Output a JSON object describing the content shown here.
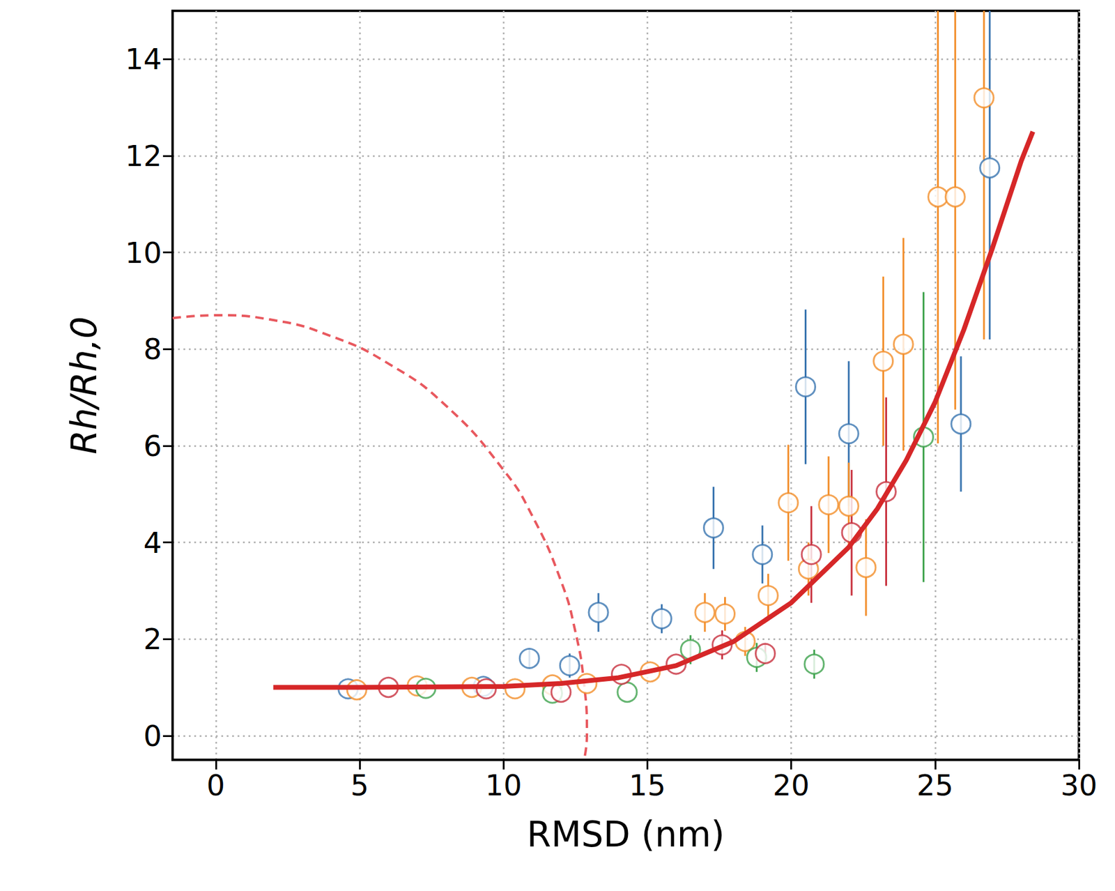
{
  "chart_data": {
    "type": "scatter",
    "xlabel": "RMSD (nm)",
    "ylabel": "Rh/Rh,0",
    "xlim": [
      -1.5,
      30
    ],
    "ylim": [
      -0.5,
      15
    ],
    "xticks": [
      0,
      5,
      10,
      15,
      20,
      25,
      30
    ],
    "yticks": [
      0,
      2,
      4,
      6,
      8,
      10,
      12,
      14
    ],
    "grid": true,
    "series": [
      {
        "color": "#3a75b0",
        "marker": "circle",
        "x": [
          4.6,
          9.3,
          10.9,
          12.3,
          13.3,
          15.5,
          17.3,
          19.0,
          20.5,
          22.0,
          25.9,
          26.9
        ],
        "values": [
          0.97,
          1.02,
          1.6,
          1.45,
          2.55,
          2.42,
          4.3,
          3.75,
          7.22,
          6.25,
          6.45,
          11.75
        ],
        "errors": [
          0,
          0,
          0.2,
          0.25,
          0.4,
          0.3,
          0.85,
          0.6,
          1.6,
          1.5,
          1.4,
          3.55
        ]
      },
      {
        "color": "#f28e2b",
        "marker": "circle",
        "x": [
          4.9,
          7.0,
          8.9,
          10.4,
          11.7,
          12.9,
          15.1,
          17.0,
          17.7,
          18.4,
          19.2,
          19.9,
          20.6,
          21.3,
          22.0,
          22.6,
          23.2,
          23.9,
          25.1,
          25.7,
          26.7
        ],
        "values": [
          0.95,
          1.03,
          1.0,
          0.97,
          1.05,
          1.08,
          1.32,
          2.55,
          2.52,
          1.95,
          2.9,
          4.82,
          3.45,
          4.78,
          4.75,
          3.48,
          7.75,
          8.1,
          11.15,
          11.15,
          13.2
        ],
        "errors": [
          0,
          0,
          0,
          0,
          0,
          0,
          0,
          0.4,
          0.35,
          0.3,
          0.45,
          1.2,
          0.55,
          1.0,
          0.9,
          1.0,
          1.75,
          2.2,
          5.1,
          4.4,
          5.0
        ]
      },
      {
        "color": "#3fa34d",
        "marker": "circle",
        "x": [
          7.3,
          11.7,
          14.3,
          16.5,
          18.8,
          20.8,
          24.6
        ],
        "values": [
          0.98,
          0.88,
          0.9,
          1.78,
          1.62,
          1.48,
          6.18
        ],
        "errors": [
          0,
          0,
          0,
          0.3,
          0.3,
          0.3,
          3.0
        ]
      },
      {
        "color": "#c8313e",
        "marker": "circle",
        "x": [
          6.0,
          9.4,
          12.0,
          14.1,
          16.0,
          17.6,
          19.1,
          20.7,
          22.1,
          23.3
        ],
        "values": [
          1.0,
          0.97,
          0.9,
          1.27,
          1.48,
          1.88,
          1.7,
          3.75,
          4.2,
          5.05
        ],
        "errors": [
          0,
          0,
          0,
          0,
          0,
          0.3,
          0.2,
          1.0,
          1.3,
          1.95
        ]
      },
      {
        "type": "line",
        "color": "#d62728",
        "line_style": "solid",
        "x": [
          2,
          5,
          10,
          12,
          14,
          16,
          18,
          20,
          22,
          23,
          24,
          25,
          26,
          27,
          28,
          28.4
        ],
        "values": [
          1.0,
          1.0,
          1.02,
          1.08,
          1.2,
          1.45,
          1.95,
          2.75,
          3.9,
          4.7,
          5.7,
          6.9,
          8.4,
          10.1,
          11.9,
          12.5
        ]
      },
      {
        "type": "line",
        "color": "#e8585e",
        "line_style": "dashed",
        "x": [
          -1.5,
          0,
          2,
          4,
          6,
          8,
          10,
          11,
          12,
          12.5,
          12.8,
          12.9,
          12.8
        ],
        "values": [
          8.64,
          8.7,
          8.6,
          8.27,
          7.7,
          6.83,
          5.5,
          4.55,
          3.2,
          2.15,
          1.08,
          0,
          -0.5
        ]
      }
    ]
  }
}
